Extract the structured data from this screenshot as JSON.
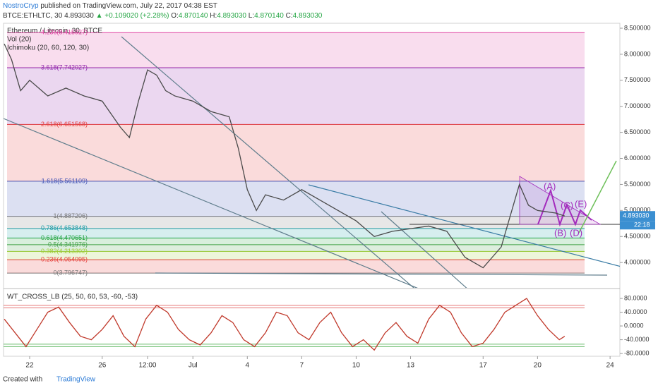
{
  "header": {
    "author": "NostroCryp",
    "published": "published on TradingView.com, July 22, 2017 04:38 EST",
    "symbol": "BTCE:ETHLTC, 30",
    "last": "4.893030",
    "change": "▲ +0.109020 (+2.28%)",
    "ohlc": [
      {
        "label": "O:",
        "value": "4.870140"
      },
      {
        "label": "H:",
        "value": "4.893030"
      },
      {
        "label": "L:",
        "value": "4.870140"
      },
      {
        "label": "C:",
        "value": "4.893030"
      }
    ]
  },
  "chart_data": [
    {
      "type": "line",
      "title": "Ethereum / Litecoin, 30, BTCE",
      "indicators": [
        "Vol (20)",
        "Ichimoku (20, 60, 120, 30)"
      ],
      "x": [
        20.6,
        21,
        21.5,
        22,
        23,
        24,
        25,
        26,
        27,
        27.5,
        28,
        28.5,
        29,
        29.5,
        30,
        31,
        32,
        33,
        33.5,
        34,
        34.5,
        35,
        36,
        37,
        38,
        39,
        40,
        41,
        42,
        43,
        44,
        45,
        46,
        47,
        48,
        49,
        49.5,
        50,
        51,
        51.5
      ],
      "series": [
        {
          "color": "#4a4a4a",
          "values": [
            8.2,
            7.9,
            7.3,
            7.5,
            7.2,
            7.35,
            7.2,
            7.1,
            6.6,
            6.4,
            7.1,
            7.7,
            7.6,
            7.3,
            7.2,
            7.1,
            6.9,
            6.8,
            6.2,
            5.4,
            5.0,
            5.3,
            5.2,
            5.4,
            5.2,
            5.0,
            4.8,
            4.5,
            4.6,
            4.65,
            4.7,
            4.6,
            4.1,
            3.9,
            4.3,
            5.5,
            5.1,
            5.0,
            4.95,
            4.89303
          ]
        }
      ],
      "xlim": [
        20.56,
        54.54
      ],
      "xticks": [
        22,
        26,
        {
          "value": 28.5,
          "label": "12:00"
        },
        {
          "value": 31,
          "label": "Jul"
        },
        4,
        7,
        10,
        13,
        17,
        20,
        24
      ],
      "xtick_days": [
        22,
        26,
        28.5,
        31,
        34,
        37,
        40,
        43,
        47,
        50,
        54
      ],
      "ylim": [
        3.514,
        8.595
      ],
      "yticks": [
        {
          "value": 4,
          "label": "4.000000"
        },
        {
          "value": 4.5,
          "label": "4.500000"
        },
        {
          "value": 5,
          "label": "5.000000"
        },
        {
          "value": 5.5,
          "label": "5.500000"
        },
        {
          "value": 6,
          "label": "6.000000"
        },
        {
          "value": 6.5,
          "label": "6.500000"
        },
        {
          "value": 7,
          "label": "7.000000"
        },
        {
          "value": 7.5,
          "label": "7.500000"
        },
        {
          "value": 8,
          "label": "8.000000"
        },
        {
          "value": 8.5,
          "label": "8.500000"
        }
      ],
      "fib_levels": [
        {
          "label": "0(3.796747)",
          "value": 3.796747,
          "color": "#787878"
        },
        {
          "label": "0.236(4.054095)",
          "value": 4.054095,
          "color": "#e53935"
        },
        {
          "label": "0.382(4.213302)",
          "value": 4.213302,
          "color": "#9ccc30"
        },
        {
          "label": "0.5(4.341976)",
          "value": 4.341976,
          "color": "#43a047"
        },
        {
          "label": "0.618(4.470651)",
          "value": 4.470651,
          "color": "#26a645"
        },
        {
          "label": "0.786(4.653848)",
          "value": 4.653848,
          "color": "#1e9ea8"
        },
        {
          "label": "1(4.887206)",
          "value": 4.887206,
          "color": "#787878"
        },
        {
          "label": "1.618(5.561109)",
          "value": 5.561109,
          "color": "#3f51b5"
        },
        {
          "label": "2.618(6.651568)",
          "value": 6.651568,
          "color": "#e53935"
        },
        {
          "label": "3.618(7.742027)",
          "value": 7.742027,
          "color": "#8e24aa"
        },
        {
          "label": "4.236(8.415927)",
          "value": 8.415927,
          "color": "#e040a0"
        }
      ],
      "annotations": [
        "(A)",
        "(B)",
        "(C)",
        "(D)",
        "(E)"
      ],
      "last_price": {
        "value": 4.89303,
        "label": "4.893030"
      },
      "countdown": "22:18"
    },
    {
      "type": "line",
      "title": "WT_CROSS_LB (25, 50, 60, 53, -60, -53)",
      "x": [
        20.6,
        21.2,
        21.8,
        22.4,
        23,
        23.6,
        24.2,
        24.8,
        25.4,
        26,
        26.6,
        27.2,
        27.8,
        28.4,
        29,
        29.6,
        30.2,
        30.8,
        31.4,
        32,
        32.6,
        33.2,
        33.8,
        34.4,
        35,
        35.6,
        36.2,
        36.8,
        37.4,
        38,
        38.6,
        39.2,
        39.8,
        40.4,
        41,
        41.6,
        42.2,
        42.8,
        43.4,
        44,
        44.6,
        45.2,
        45.8,
        46.4,
        47,
        47.6,
        48.2,
        48.8,
        49.4,
        50,
        50.6,
        51.2,
        51.5
      ],
      "series": [
        {
          "color": "#c0392b",
          "values": [
            20,
            -20,
            -60,
            -10,
            40,
            55,
            10,
            -30,
            -40,
            -10,
            30,
            -30,
            -60,
            20,
            60,
            40,
            -10,
            -40,
            -55,
            -20,
            30,
            10,
            -40,
            -60,
            -20,
            40,
            30,
            -20,
            -40,
            10,
            40,
            -20,
            -60,
            -40,
            -70,
            -20,
            10,
            -30,
            -50,
            20,
            60,
            40,
            -20,
            -60,
            -50,
            -10,
            40,
            60,
            80,
            30,
            -10,
            -40,
            -30
          ]
        }
      ],
      "xlim": [
        20.56,
        54.54
      ],
      "ylim": [
        -88,
        106.7
      ],
      "yticks": [
        {
          "value": 80,
          "label": "80.0000"
        },
        {
          "value": 40,
          "label": "40.0000"
        },
        {
          "value": 0,
          "label": "0.0000"
        },
        {
          "value": -40,
          "label": "-40.0000"
        },
        {
          "value": -80,
          "label": "-80.0000"
        }
      ],
      "levels": [
        {
          "value": 60,
          "color": "#e57373"
        },
        {
          "value": 53,
          "color": "#e57373"
        },
        {
          "value": -60,
          "color": "#66bb6a"
        },
        {
          "value": -53,
          "color": "#66bb6a"
        }
      ]
    }
  ],
  "footer": {
    "created": "Created with",
    "brand": "TradingView"
  }
}
